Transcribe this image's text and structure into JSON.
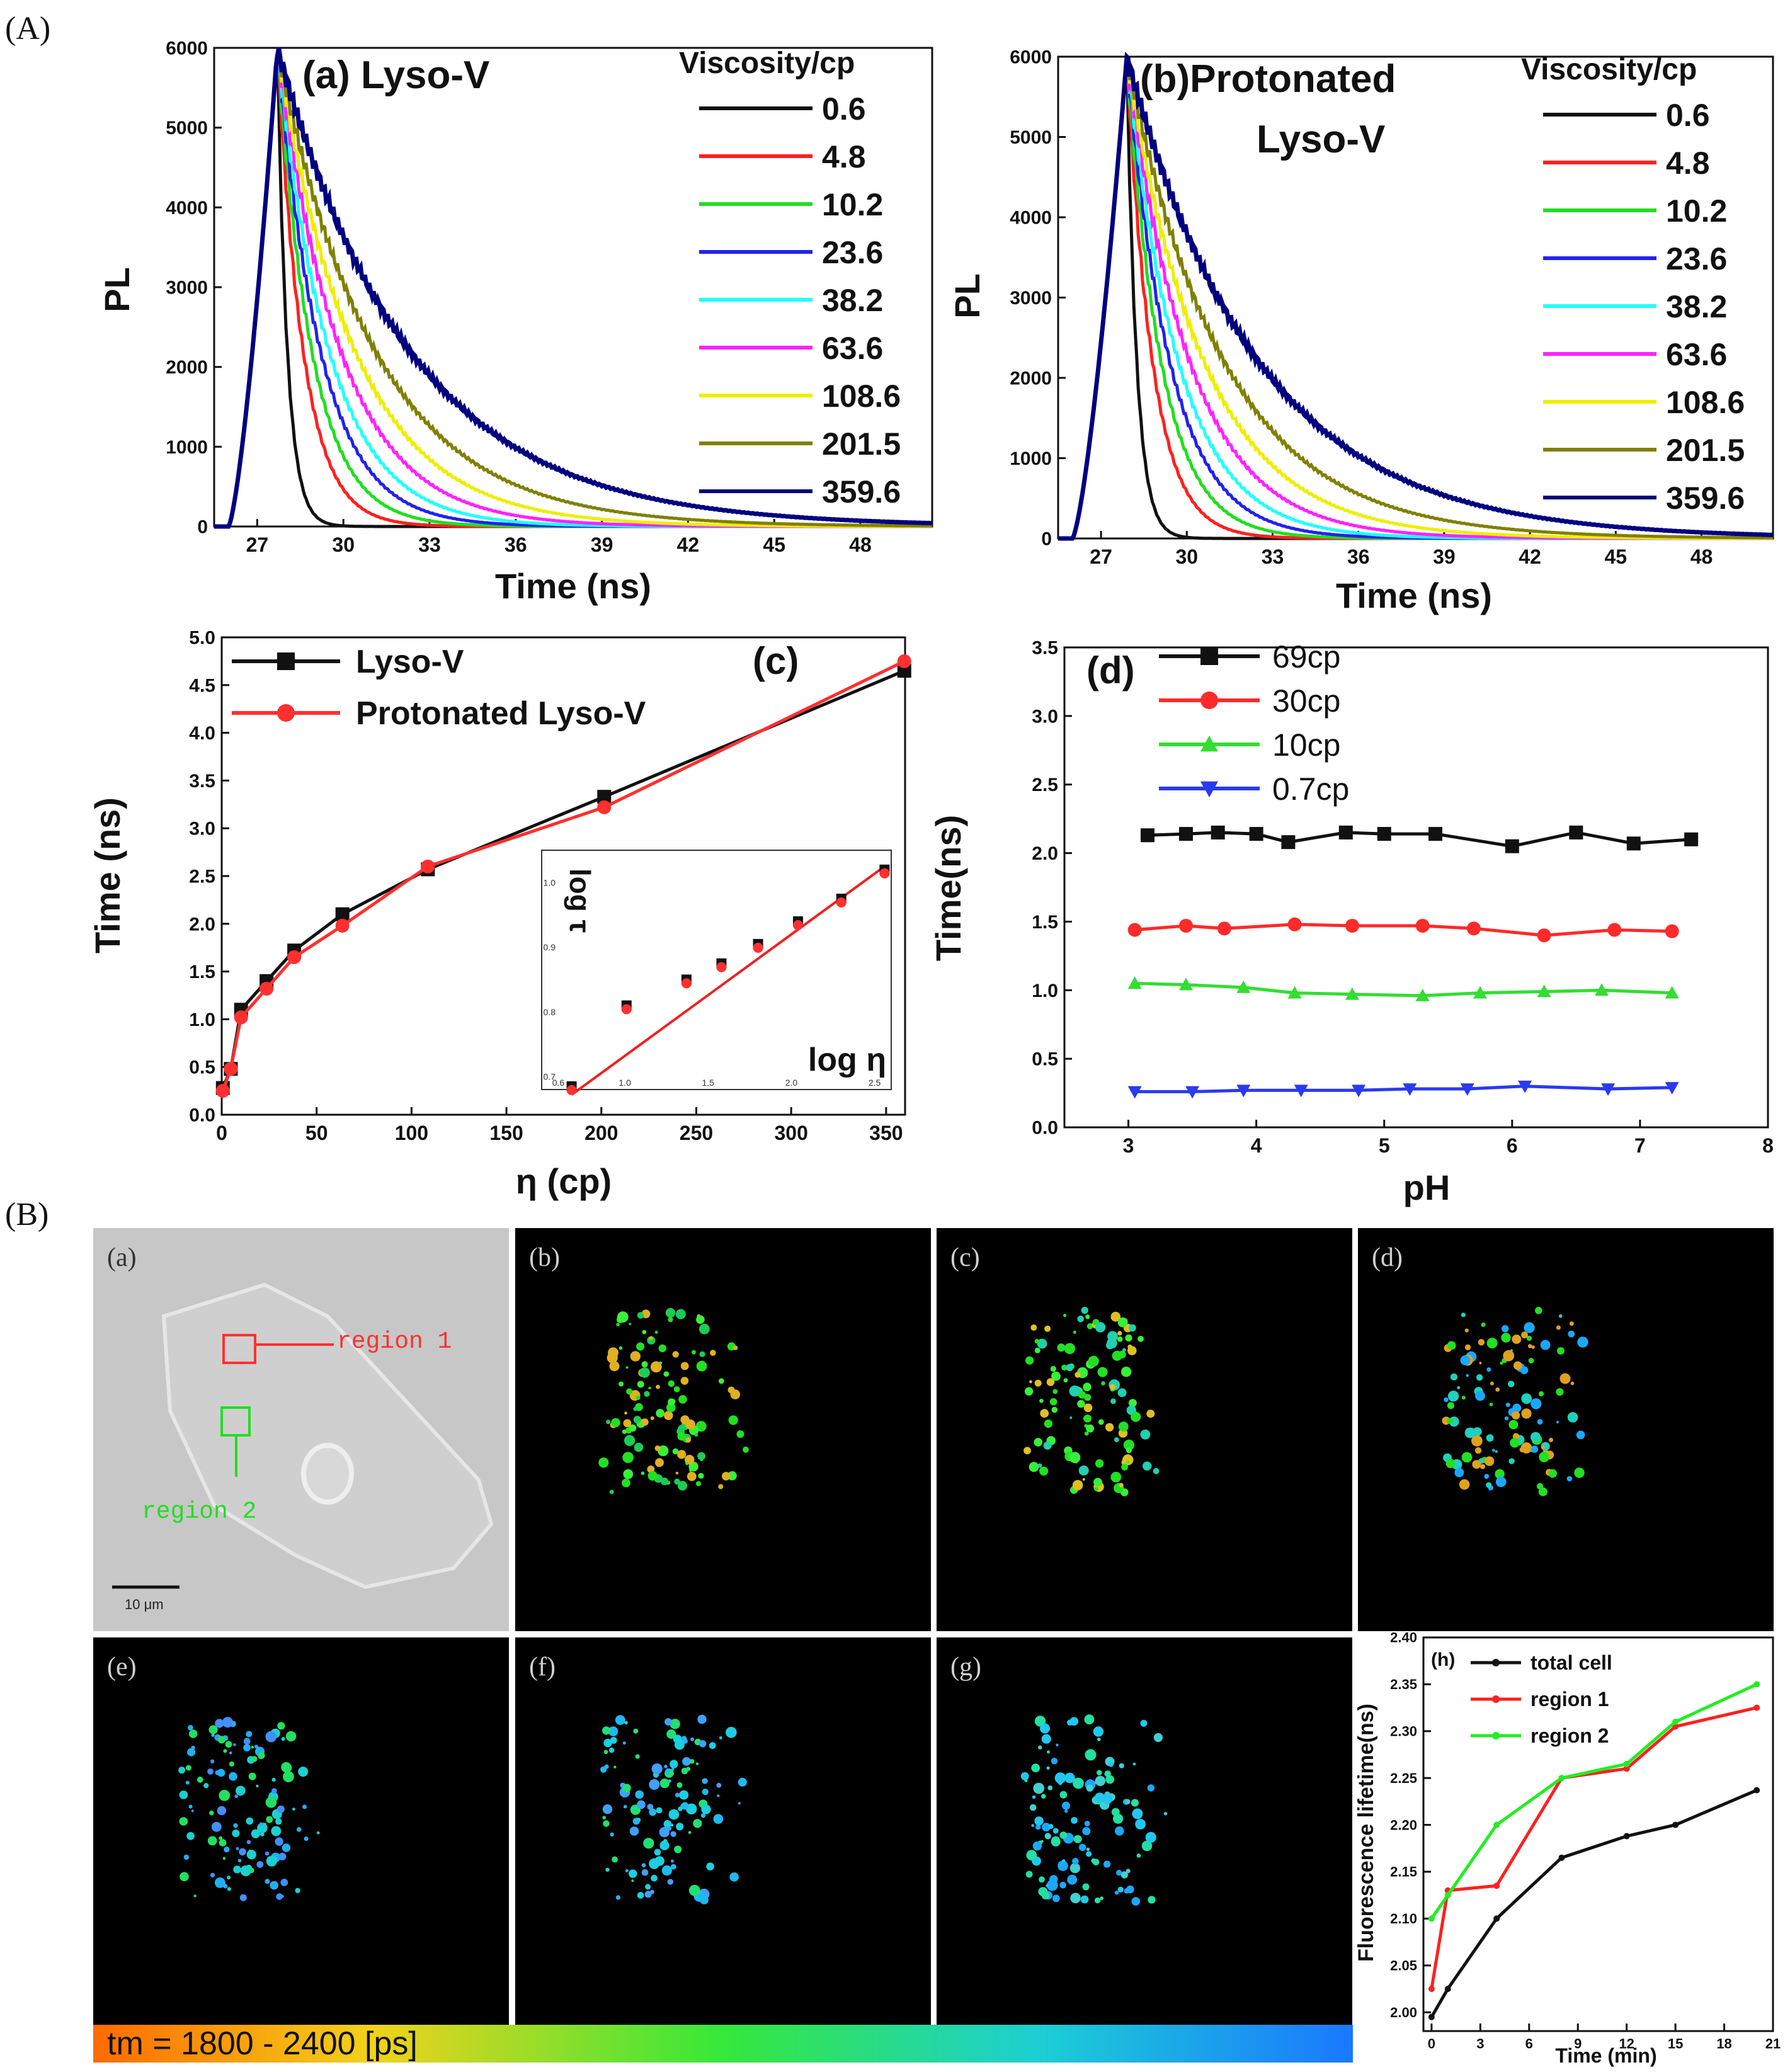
{
  "figure": {
    "section_A_label": "(A)",
    "section_B_label": "(B)"
  },
  "chart_data": [
    {
      "id": "a",
      "type": "line",
      "title": "(a) Lyso-V",
      "xlabel": "Time (ns)",
      "ylabel": "PL",
      "xlim": [
        25.5,
        50.5
      ],
      "ylim": [
        0,
        6000
      ],
      "xticks": [
        27,
        30,
        33,
        36,
        39,
        42,
        45,
        48
      ],
      "yticks": [
        0,
        1000,
        2000,
        3000,
        4000,
        5000,
        6000
      ],
      "legend_title": "Viscosity/cp",
      "peak_time": 27.7,
      "peak_value": 6000,
      "series": [
        {
          "name": "0.6",
          "color": "#111111",
          "decay_ns": 0.35
        },
        {
          "name": "4.8",
          "color": "#ff2020",
          "decay_ns": 0.9
        },
        {
          "name": "10.2",
          "color": "#22dd22",
          "decay_ns": 1.2
        },
        {
          "name": "23.6",
          "color": "#2222ee",
          "decay_ns": 1.5
        },
        {
          "name": "38.2",
          "color": "#22ffff",
          "decay_ns": 1.8
        },
        {
          "name": "63.6",
          "color": "#ff22ff",
          "decay_ns": 2.2
        },
        {
          "name": "108.6",
          "color": "#eeee00",
          "decay_ns": 2.7
        },
        {
          "name": "201.5",
          "color": "#808000",
          "decay_ns": 3.4
        },
        {
          "name": "359.6",
          "color": "#000080",
          "decay_ns": 4.6
        }
      ]
    },
    {
      "id": "b",
      "type": "line",
      "title_line1": "(b)Protonated",
      "title_line2": "Lyso-V",
      "xlabel": "Time (ns)",
      "ylabel": "PL",
      "xlim": [
        25.5,
        50.5
      ],
      "ylim": [
        0,
        6000
      ],
      "xticks": [
        27,
        30,
        33,
        36,
        39,
        42,
        45,
        48
      ],
      "yticks": [
        0,
        1000,
        2000,
        3000,
        4000,
        5000,
        6000
      ],
      "legend_title": "Viscosity/cp",
      "peak_time": 27.9,
      "peak_value": 6000,
      "series": [
        {
          "name": "0.6",
          "color": "#111111",
          "decay_ns": 0.35
        },
        {
          "name": "4.8",
          "color": "#ff2020",
          "decay_ns": 0.9
        },
        {
          "name": "10.2",
          "color": "#22dd22",
          "decay_ns": 1.2
        },
        {
          "name": "23.6",
          "color": "#2222ee",
          "decay_ns": 1.5
        },
        {
          "name": "38.2",
          "color": "#22ffff",
          "decay_ns": 1.8
        },
        {
          "name": "63.6",
          "color": "#ff22ff",
          "decay_ns": 2.2
        },
        {
          "name": "108.6",
          "color": "#eeee00",
          "decay_ns": 2.7
        },
        {
          "name": "201.5",
          "color": "#808000",
          "decay_ns": 3.4
        },
        {
          "name": "359.6",
          "color": "#000080",
          "decay_ns": 4.6
        }
      ]
    },
    {
      "id": "c",
      "type": "line",
      "title": "(c)",
      "xlabel": "η (cp)",
      "ylabel": "Time (ns)",
      "xlim": [
        0,
        360
      ],
      "ylim": [
        0,
        5.0
      ],
      "xticks": [
        0,
        50,
        100,
        150,
        200,
        250,
        300,
        350
      ],
      "yticks": [
        0.0,
        0.5,
        1.0,
        1.5,
        2.0,
        2.5,
        3.0,
        3.5,
        4.0,
        4.5,
        5.0
      ],
      "x": [
        0.6,
        4.8,
        10.2,
        23.6,
        38.2,
        63.6,
        108.6,
        201.5,
        359.6
      ],
      "series": [
        {
          "name": "Lyso-V",
          "color": "#111111",
          "marker": "square",
          "values": [
            0.28,
            0.48,
            1.1,
            1.4,
            1.72,
            2.1,
            2.57,
            3.33,
            4.65
          ]
        },
        {
          "name": "Protonated Lyso-V",
          "color": "#ff3030",
          "marker": "circle",
          "values": [
            0.25,
            0.48,
            1.02,
            1.32,
            1.65,
            1.98,
            2.6,
            3.22,
            4.75
          ]
        }
      ],
      "inset": {
        "xlabel": "log η",
        "ylabel": "log τ",
        "xticks": [
          "0.6",
          "1.0",
          "1.5",
          "2.0",
          "2.5"
        ],
        "yticks": [
          "0.7",
          "0.8",
          "0.9",
          "1.0"
        ],
        "xlim": [
          0.5,
          2.6
        ],
        "ylim": [
          0.68,
          1.05
        ],
        "x": [
          0.68,
          1.01,
          1.37,
          1.58,
          1.8,
          2.04,
          2.3,
          2.56
        ],
        "values": [
          0.685,
          0.81,
          0.85,
          0.875,
          0.905,
          0.94,
          0.975,
          1.02
        ],
        "fit": [
          [
            0.68,
            0.672
          ],
          [
            2.56,
            1.025
          ]
        ]
      }
    },
    {
      "id": "d",
      "type": "line",
      "title": "(d)",
      "xlabel": "pH",
      "ylabel": "Time(ns)",
      "xlim": [
        2.5,
        8
      ],
      "ylim": [
        0,
        3.5
      ],
      "xticks": [
        3,
        4,
        5,
        6,
        7,
        8
      ],
      "yticks": [
        0.0,
        0.5,
        1.0,
        1.5,
        2.0,
        2.5,
        3.0,
        3.5
      ],
      "series": [
        {
          "name": "69cp",
          "color": "#111111",
          "marker": "square",
          "x": [
            3.15,
            3.45,
            3.7,
            4.0,
            4.25,
            4.7,
            5.0,
            5.4,
            6.0,
            6.5,
            6.95,
            7.4
          ],
          "values": [
            2.13,
            2.14,
            2.15,
            2.14,
            2.08,
            2.15,
            2.14,
            2.14,
            2.05,
            2.15,
            2.07,
            2.1
          ]
        },
        {
          "name": "30cp",
          "color": "#ff2a2a",
          "marker": "circle",
          "x": [
            3.05,
            3.45,
            3.75,
            4.3,
            4.75,
            5.3,
            5.7,
            6.25,
            6.8,
            7.25
          ],
          "values": [
            1.44,
            1.47,
            1.45,
            1.48,
            1.47,
            1.47,
            1.45,
            1.4,
            1.44,
            1.43
          ]
        },
        {
          "name": "10cp",
          "color": "#33dd33",
          "marker": "triangle-up",
          "x": [
            3.05,
            3.45,
            3.9,
            4.3,
            4.75,
            5.3,
            5.75,
            6.25,
            6.7,
            7.25
          ],
          "values": [
            1.05,
            1.04,
            1.02,
            0.98,
            0.97,
            0.96,
            0.98,
            0.99,
            1.0,
            0.98
          ]
        },
        {
          "name": "0.7cp",
          "color": "#2a3aee",
          "marker": "triangle-down",
          "x": [
            3.05,
            3.5,
            3.9,
            4.35,
            4.8,
            5.2,
            5.65,
            6.1,
            6.75,
            7.25
          ],
          "values": [
            0.26,
            0.26,
            0.27,
            0.27,
            0.27,
            0.28,
            0.28,
            0.3,
            0.28,
            0.29
          ]
        }
      ]
    },
    {
      "id": "h",
      "type": "line",
      "title": "(h)",
      "xlabel": "Time (min)",
      "ylabel": "Fluorescence lifetime(ns)",
      "xlim": [
        -0.5,
        21
      ],
      "ylim": [
        1.98,
        2.4
      ],
      "xticks": [
        0,
        3,
        6,
        9,
        12,
        15,
        18,
        21
      ],
      "yticks": [
        "2.00",
        "2.05",
        "2.10",
        "2.15",
        "2.20",
        "2.25",
        "2.30",
        "2.35",
        "2.40"
      ],
      "x": [
        0,
        1,
        4,
        8,
        12,
        15,
        20
      ],
      "series": [
        {
          "name": "total cell",
          "color": "#111111",
          "values": [
            1.995,
            2.025,
            2.1,
            2.165,
            2.188,
            2.2,
            2.237
          ]
        },
        {
          "name": "region 1",
          "color": "#ff2020",
          "values": [
            2.025,
            2.13,
            2.135,
            2.25,
            2.26,
            2.305,
            2.325
          ]
        },
        {
          "name": "region 2",
          "color": "#22ee22",
          "values": [
            2.1,
            2.125,
            2.2,
            2.25,
            2.265,
            2.31,
            2.35
          ]
        }
      ]
    }
  ],
  "images": {
    "panel_a_label": "(a)",
    "region1_label": "region 1",
    "region2_label": "region 2",
    "scale_label": "10 μm",
    "fluorescence_panels": [
      "(b)",
      "(c)",
      "(d)",
      "(e)",
      "(f)",
      "(g)"
    ],
    "colorbar_label": "tm = 1800 - 2400 [ps]",
    "colors": {
      "region1": "#ff3030",
      "region2": "#22dd22",
      "colorbar_stops": [
        "#ff6a00",
        "#f2d21a",
        "#35e83a",
        "#1ccfd4",
        "#1a78ff"
      ]
    }
  }
}
